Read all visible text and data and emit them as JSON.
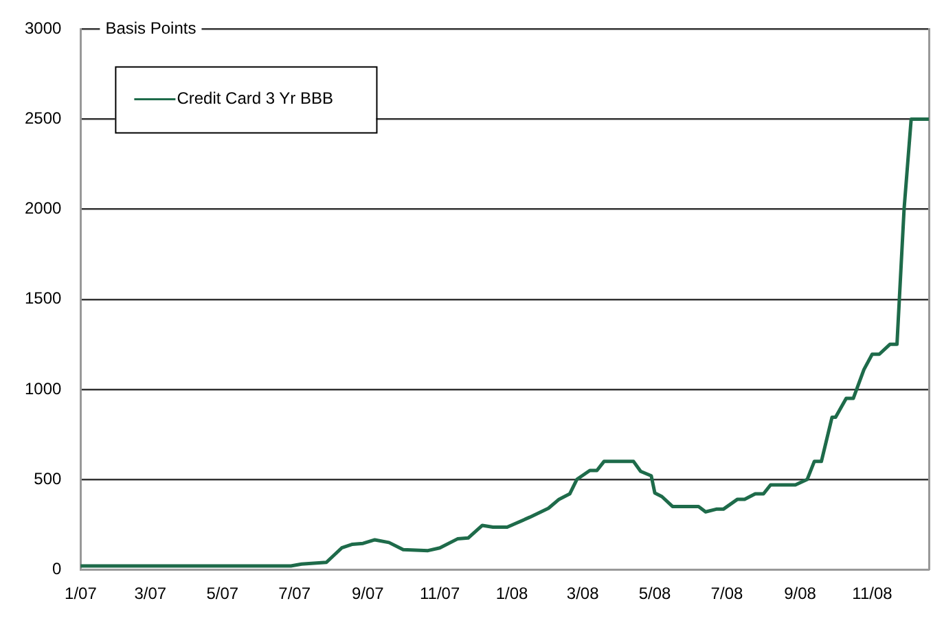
{
  "chart_data": {
    "type": "line",
    "ylabel": "Basis Points",
    "legend": "top left",
    "grid": "y",
    "marker": "none",
    "line_style": "solid",
    "xlim": [
      "2007-01-01",
      "2008-12-19"
    ],
    "ylim": [
      0,
      3000
    ],
    "xticks": [
      {
        "value": "2007-01",
        "label": "1/07"
      },
      {
        "value": "2007-03",
        "label": "3/07"
      },
      {
        "value": "2007-05",
        "label": "5/07"
      },
      {
        "value": "2007-07",
        "label": "7/07"
      },
      {
        "value": "2007-09",
        "label": "9/07"
      },
      {
        "value": "2007-11",
        "label": "11/07"
      },
      {
        "value": "2008-01",
        "label": "1/08"
      },
      {
        "value": "2008-03",
        "label": "3/08"
      },
      {
        "value": "2008-05",
        "label": "5/08"
      },
      {
        "value": "2008-07",
        "label": "7/08"
      },
      {
        "value": "2008-09",
        "label": "9/08"
      },
      {
        "value": "2008-11",
        "label": "11/08"
      }
    ],
    "yticks": [
      0,
      500,
      1000,
      1500,
      2000,
      2500,
      3000
    ],
    "series": [
      {
        "name": "Credit Card 3 Yr BBB",
        "color": "#1e6b4a",
        "x": [
          "2007-01-01",
          "2007-06-28",
          "2007-07-07",
          "2007-07-28",
          "2007-08-10",
          "2007-08-19",
          "2007-08-28",
          "2007-09-07",
          "2007-09-19",
          "2007-10-01",
          "2007-10-22",
          "2007-11-01",
          "2007-11-16",
          "2007-11-25",
          "2007-12-07",
          "2007-12-16",
          "2007-12-28",
          "2008-01-16",
          "2008-02-01",
          "2008-02-10",
          "2008-02-19",
          "2008-02-25",
          "2008-03-07",
          "2008-03-13",
          "2008-03-19",
          "2008-04-13",
          "2008-04-19",
          "2008-04-28",
          "2008-05-01",
          "2008-05-07",
          "2008-05-16",
          "2008-06-07",
          "2008-06-13",
          "2008-06-22",
          "2008-06-28",
          "2008-07-10",
          "2008-07-16",
          "2008-07-25",
          "2008-08-01",
          "2008-08-07",
          "2008-08-28",
          "2008-09-07",
          "2008-09-13",
          "2008-09-19",
          "2008-09-28",
          "2008-10-01",
          "2008-10-10",
          "2008-10-16",
          "2008-10-25",
          "2008-11-01",
          "2008-11-07",
          "2008-11-16",
          "2008-11-22",
          "2008-11-28",
          "2008-12-04",
          "2008-12-19"
        ],
        "values": [
          20,
          20,
          30,
          40,
          120,
          140,
          145,
          165,
          150,
          110,
          105,
          120,
          170,
          175,
          245,
          235,
          235,
          290,
          340,
          390,
          420,
          500,
          550,
          550,
          600,
          600,
          545,
          520,
          425,
          405,
          350,
          350,
          320,
          335,
          335,
          390,
          390,
          420,
          420,
          470,
          470,
          500,
          600,
          600,
          845,
          845,
          950,
          950,
          1110,
          1195,
          1195,
          1250,
          1250,
          2000,
          2500,
          2500
        ]
      }
    ]
  }
}
